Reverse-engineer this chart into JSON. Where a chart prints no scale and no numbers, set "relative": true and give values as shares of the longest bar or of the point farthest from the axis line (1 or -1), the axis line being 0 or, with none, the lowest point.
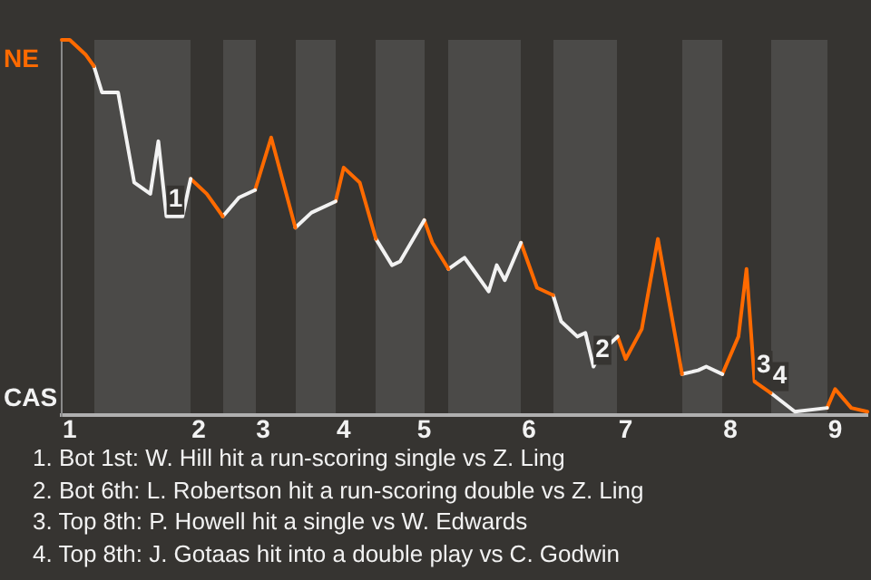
{
  "chart_data": {
    "type": "line",
    "relative": true,
    "categories": [
      null,
      "1",
      null,
      null,
      null,
      null,
      null,
      null,
      null,
      null,
      null,
      null,
      null,
      null,
      null,
      null,
      null,
      "2",
      null,
      null,
      null,
      null,
      null,
      null,
      null,
      "3",
      null,
      null,
      null,
      null,
      null,
      null,
      null,
      null,
      null,
      "4",
      null,
      null,
      null,
      null,
      null,
      null,
      null,
      null,
      null,
      "5",
      null,
      null,
      null,
      null,
      null,
      null,
      null,
      null,
      null,
      null,
      null,
      null,
      "6",
      null,
      null,
      null,
      null,
      null,
      null,
      null,
      null,
      null,
      null,
      null,
      "7",
      null,
      null,
      null,
      null,
      null,
      null,
      null,
      null,
      null,
      null,
      null,
      null,
      "8",
      null,
      null,
      null,
      null,
      null,
      null,
      null,
      null,
      null,
      null,
      null,
      null,
      "9",
      null,
      null,
      null,
      null
    ],
    "series": [
      {
        "color": "#ff6a00",
        "values": [
          1,
          1,
          null,
          0.96,
          0.93,
          null,
          null,
          null,
          null,
          null,
          null,
          null,
          null,
          null,
          null,
          null,
          null,
          null,
          null,
          null,
          null,
          null,
          null,
          null,
          null,
          null,
          null,
          null,
          null,
          null,
          null,
          null,
          null,
          null,
          null,
          null,
          null,
          null,
          null,
          null,
          null,
          null,
          null,
          null,
          null,
          null,
          null,
          null,
          null,
          null,
          null,
          null,
          null,
          null,
          null,
          null,
          null,
          null,
          null,
          null,
          null,
          null,
          null,
          null,
          null,
          null,
          null,
          null,
          null,
          null,
          null,
          null,
          null,
          null,
          null,
          null,
          null,
          null,
          null,
          null,
          null,
          null,
          null,
          null,
          null,
          null,
          null,
          null,
          null,
          null,
          null,
          null,
          null,
          null,
          null,
          null,
          null,
          null,
          null,
          null,
          null
        ]
      },
      {
        "color": "#f2f2f2",
        "values": [
          null,
          null,
          null,
          null,
          0.93,
          0.86,
          null,
          0.86,
          null,
          0.62,
          null,
          0.59,
          0.73,
          0.53,
          null,
          0.53,
          0.63,
          null,
          null,
          null,
          null,
          null,
          null,
          null,
          null,
          null,
          null,
          null,
          null,
          null,
          null,
          null,
          null,
          null,
          null,
          null,
          null,
          null,
          null,
          null,
          null,
          null,
          null,
          null,
          null,
          null,
          null,
          null,
          null,
          null,
          null,
          null,
          null,
          null,
          null,
          null,
          null,
          null,
          null,
          null,
          null,
          null,
          null,
          null,
          null,
          null,
          null,
          null,
          null,
          null,
          null,
          null,
          null,
          null,
          null,
          null,
          null,
          null,
          null,
          null,
          null,
          null,
          null,
          null,
          null,
          null,
          null,
          null,
          null,
          null,
          null,
          null,
          null,
          null,
          null,
          null,
          null,
          null,
          null,
          null,
          null
        ]
      },
      {
        "color": "#ff6a00",
        "values": [
          null,
          null,
          null,
          null,
          null,
          null,
          null,
          null,
          null,
          null,
          null,
          null,
          null,
          null,
          null,
          null,
          0.63,
          null,
          0.59,
          null,
          0.53,
          null,
          null,
          null,
          null,
          null,
          null,
          null,
          null,
          null,
          null,
          null,
          null,
          null,
          null,
          null,
          null,
          null,
          null,
          null,
          null,
          null,
          null,
          null,
          null,
          null,
          null,
          null,
          null,
          null,
          null,
          null,
          null,
          null,
          null,
          null,
          null,
          null,
          null,
          null,
          null,
          null,
          null,
          null,
          null,
          null,
          null,
          null,
          null,
          null,
          null,
          null,
          null,
          null,
          null,
          null,
          null,
          null,
          null,
          null,
          null,
          null,
          null,
          null,
          null,
          null,
          null,
          null,
          null,
          null,
          null,
          null,
          null,
          null,
          null,
          null,
          null,
          null,
          null,
          null,
          null
        ]
      },
      {
        "color": "#f2f2f2",
        "values": [
          null,
          null,
          null,
          null,
          null,
          null,
          null,
          null,
          null,
          null,
          null,
          null,
          null,
          null,
          null,
          null,
          null,
          null,
          null,
          null,
          0.53,
          null,
          0.58,
          null,
          0.6,
          null,
          null,
          null,
          null,
          null,
          null,
          null,
          null,
          null,
          null,
          null,
          null,
          null,
          null,
          null,
          null,
          null,
          null,
          null,
          null,
          null,
          null,
          null,
          null,
          null,
          null,
          null,
          null,
          null,
          null,
          null,
          null,
          null,
          null,
          null,
          null,
          null,
          null,
          null,
          null,
          null,
          null,
          null,
          null,
          null,
          null,
          null,
          null,
          null,
          null,
          null,
          null,
          null,
          null,
          null,
          null,
          null,
          null,
          null,
          null,
          null,
          null,
          null,
          null,
          null,
          null,
          null,
          null,
          null,
          null,
          null,
          null,
          null,
          null,
          null,
          null
        ]
      },
      {
        "color": "#ff6a00",
        "values": [
          null,
          null,
          null,
          null,
          null,
          null,
          null,
          null,
          null,
          null,
          null,
          null,
          null,
          null,
          null,
          null,
          null,
          null,
          null,
          null,
          null,
          null,
          null,
          null,
          0.6,
          null,
          0.74,
          null,
          0.58,
          0.5,
          null,
          null,
          null,
          null,
          null,
          null,
          null,
          null,
          null,
          null,
          null,
          null,
          null,
          null,
          null,
          null,
          null,
          null,
          null,
          null,
          null,
          null,
          null,
          null,
          null,
          null,
          null,
          null,
          null,
          null,
          null,
          null,
          null,
          null,
          null,
          null,
          null,
          null,
          null,
          null,
          null,
          null,
          null,
          null,
          null,
          null,
          null,
          null,
          null,
          null,
          null,
          null,
          null,
          null,
          null,
          null,
          null,
          null,
          null,
          null,
          null,
          null,
          null,
          null,
          null,
          null,
          null,
          null,
          null,
          null,
          null
        ]
      },
      {
        "color": "#f2f2f2",
        "values": [
          null,
          null,
          null,
          null,
          null,
          null,
          null,
          null,
          null,
          null,
          null,
          null,
          null,
          null,
          null,
          null,
          null,
          null,
          null,
          null,
          null,
          null,
          null,
          null,
          null,
          null,
          null,
          null,
          null,
          0.5,
          null,
          0.54,
          null,
          null,
          0.57,
          null,
          null,
          null,
          null,
          null,
          null,
          null,
          null,
          null,
          null,
          null,
          null,
          null,
          null,
          null,
          null,
          null,
          null,
          null,
          null,
          null,
          null,
          null,
          null,
          null,
          null,
          null,
          null,
          null,
          null,
          null,
          null,
          null,
          null,
          null,
          null,
          null,
          null,
          null,
          null,
          null,
          null,
          null,
          null,
          null,
          null,
          null,
          null,
          null,
          null,
          null,
          null,
          null,
          null,
          null,
          null,
          null,
          null,
          null,
          null,
          null,
          null,
          null,
          null,
          null,
          null
        ]
      },
      {
        "color": "#ff6a00",
        "values": [
          null,
          null,
          null,
          null,
          null,
          null,
          null,
          null,
          null,
          null,
          null,
          null,
          null,
          null,
          null,
          null,
          null,
          null,
          null,
          null,
          null,
          null,
          null,
          null,
          null,
          null,
          null,
          null,
          null,
          null,
          null,
          null,
          null,
          null,
          0.57,
          0.66,
          null,
          0.62,
          null,
          0.47,
          null,
          null,
          null,
          null,
          null,
          null,
          null,
          null,
          null,
          null,
          null,
          null,
          null,
          null,
          null,
          null,
          null,
          null,
          null,
          null,
          null,
          null,
          null,
          null,
          null,
          null,
          null,
          null,
          null,
          null,
          null,
          null,
          null,
          null,
          null,
          null,
          null,
          null,
          null,
          null,
          null,
          null,
          null,
          null,
          null,
          null,
          null,
          null,
          null,
          null,
          null,
          null,
          null,
          null,
          null,
          null,
          null,
          null,
          null,
          null,
          null
        ]
      },
      {
        "color": "#f2f2f2",
        "values": [
          null,
          null,
          null,
          null,
          null,
          null,
          null,
          null,
          null,
          null,
          null,
          null,
          null,
          null,
          null,
          null,
          null,
          null,
          null,
          null,
          null,
          null,
          null,
          null,
          null,
          null,
          null,
          null,
          null,
          null,
          null,
          null,
          null,
          null,
          null,
          null,
          null,
          null,
          null,
          0.47,
          null,
          0.4,
          0.41,
          null,
          null,
          0.52,
          null,
          null,
          null,
          null,
          null,
          null,
          null,
          null,
          null,
          null,
          null,
          null,
          null,
          null,
          null,
          null,
          null,
          null,
          null,
          null,
          null,
          null,
          null,
          null,
          null,
          null,
          null,
          null,
          null,
          null,
          null,
          null,
          null,
          null,
          null,
          null,
          null,
          null,
          null,
          null,
          null,
          null,
          null,
          null,
          null,
          null,
          null,
          null,
          null,
          null,
          null,
          null,
          null,
          null,
          null
        ]
      },
      {
        "color": "#ff6a00",
        "values": [
          null,
          null,
          null,
          null,
          null,
          null,
          null,
          null,
          null,
          null,
          null,
          null,
          null,
          null,
          null,
          null,
          null,
          null,
          null,
          null,
          null,
          null,
          null,
          null,
          null,
          null,
          null,
          null,
          null,
          null,
          null,
          null,
          null,
          null,
          null,
          null,
          null,
          null,
          null,
          null,
          null,
          null,
          null,
          null,
          null,
          0.52,
          0.46,
          null,
          0.39,
          null,
          null,
          null,
          null,
          null,
          null,
          null,
          null,
          null,
          null,
          null,
          null,
          null,
          null,
          null,
          null,
          null,
          null,
          null,
          null,
          null,
          null,
          null,
          null,
          null,
          null,
          null,
          null,
          null,
          null,
          null,
          null,
          null,
          null,
          null,
          null,
          null,
          null,
          null,
          null,
          null,
          null,
          null,
          null,
          null,
          null,
          null,
          null,
          null,
          null,
          null,
          null
        ]
      },
      {
        "color": "#f2f2f2",
        "values": [
          null,
          null,
          null,
          null,
          null,
          null,
          null,
          null,
          null,
          null,
          null,
          null,
          null,
          null,
          null,
          null,
          null,
          null,
          null,
          null,
          null,
          null,
          null,
          null,
          null,
          null,
          null,
          null,
          null,
          null,
          null,
          null,
          null,
          null,
          null,
          null,
          null,
          null,
          null,
          null,
          null,
          null,
          null,
          null,
          null,
          null,
          null,
          null,
          0.39,
          null,
          0.42,
          0.39,
          null,
          0.33,
          0.4,
          0.36,
          null,
          0.46,
          null,
          null,
          null,
          null,
          null,
          null,
          null,
          null,
          null,
          null,
          null,
          null,
          null,
          null,
          null,
          null,
          null,
          null,
          null,
          null,
          null,
          null,
          null,
          null,
          null,
          null,
          null,
          null,
          null,
          null,
          null,
          null,
          null,
          null,
          null,
          null,
          null,
          null,
          null,
          null,
          null,
          null,
          null
        ]
      },
      {
        "color": "#ff6a00",
        "values": [
          null,
          null,
          null,
          null,
          null,
          null,
          null,
          null,
          null,
          null,
          null,
          null,
          null,
          null,
          null,
          null,
          null,
          null,
          null,
          null,
          null,
          null,
          null,
          null,
          null,
          null,
          null,
          null,
          null,
          null,
          null,
          null,
          null,
          null,
          null,
          null,
          null,
          null,
          null,
          null,
          null,
          null,
          null,
          null,
          null,
          null,
          null,
          null,
          null,
          null,
          null,
          null,
          null,
          null,
          null,
          null,
          null,
          0.46,
          null,
          0.34,
          null,
          0.32,
          null,
          null,
          null,
          null,
          null,
          null,
          null,
          null,
          null,
          null,
          null,
          null,
          null,
          null,
          null,
          null,
          null,
          null,
          null,
          null,
          null,
          null,
          null,
          null,
          null,
          null,
          null,
          null,
          null,
          null,
          null,
          null,
          null,
          null,
          null,
          null,
          null,
          null,
          null
        ]
      },
      {
        "color": "#f2f2f2",
        "values": [
          null,
          null,
          null,
          null,
          null,
          null,
          null,
          null,
          null,
          null,
          null,
          null,
          null,
          null,
          null,
          null,
          null,
          null,
          null,
          null,
          null,
          null,
          null,
          null,
          null,
          null,
          null,
          null,
          null,
          null,
          null,
          null,
          null,
          null,
          null,
          null,
          null,
          null,
          null,
          null,
          null,
          null,
          null,
          null,
          null,
          null,
          null,
          null,
          null,
          null,
          null,
          null,
          null,
          null,
          null,
          null,
          null,
          null,
          null,
          null,
          null,
          0.32,
          0.25,
          null,
          0.21,
          0.22,
          0.13,
          0.17,
          null,
          0.21,
          null,
          null,
          null,
          null,
          null,
          null,
          null,
          null,
          null,
          null,
          null,
          null,
          null,
          null,
          null,
          null,
          null,
          null,
          null,
          null,
          null,
          null,
          null,
          null,
          null,
          null,
          null,
          null,
          null,
          null,
          null
        ]
      },
      {
        "color": "#ff6a00",
        "values": [
          null,
          null,
          null,
          null,
          null,
          null,
          null,
          null,
          null,
          null,
          null,
          null,
          null,
          null,
          null,
          null,
          null,
          null,
          null,
          null,
          null,
          null,
          null,
          null,
          null,
          null,
          null,
          null,
          null,
          null,
          null,
          null,
          null,
          null,
          null,
          null,
          null,
          null,
          null,
          null,
          null,
          null,
          null,
          null,
          null,
          null,
          null,
          null,
          null,
          null,
          null,
          null,
          null,
          null,
          null,
          null,
          null,
          null,
          null,
          null,
          null,
          null,
          null,
          null,
          null,
          null,
          null,
          null,
          null,
          0.21,
          0.15,
          null,
          0.23,
          null,
          0.47,
          null,
          null,
          0.11,
          null,
          null,
          null,
          null,
          null,
          null,
          null,
          null,
          null,
          null,
          null,
          null,
          null,
          null,
          null,
          null,
          null,
          null,
          null,
          null,
          null,
          null,
          null
        ]
      },
      {
        "color": "#f2f2f2",
        "values": [
          null,
          null,
          null,
          null,
          null,
          null,
          null,
          null,
          null,
          null,
          null,
          null,
          null,
          null,
          null,
          null,
          null,
          null,
          null,
          null,
          null,
          null,
          null,
          null,
          null,
          null,
          null,
          null,
          null,
          null,
          null,
          null,
          null,
          null,
          null,
          null,
          null,
          null,
          null,
          null,
          null,
          null,
          null,
          null,
          null,
          null,
          null,
          null,
          null,
          null,
          null,
          null,
          null,
          null,
          null,
          null,
          null,
          null,
          null,
          null,
          null,
          null,
          null,
          null,
          null,
          null,
          null,
          null,
          null,
          null,
          null,
          null,
          null,
          null,
          null,
          null,
          null,
          0.11,
          null,
          0.12,
          0.13,
          null,
          0.11,
          null,
          null,
          null,
          null,
          null,
          null,
          null,
          null,
          null,
          null,
          null,
          null,
          null,
          null,
          null,
          null,
          null,
          null
        ]
      },
      {
        "color": "#ff6a00",
        "values": [
          null,
          null,
          null,
          null,
          null,
          null,
          null,
          null,
          null,
          null,
          null,
          null,
          null,
          null,
          null,
          null,
          null,
          null,
          null,
          null,
          null,
          null,
          null,
          null,
          null,
          null,
          null,
          null,
          null,
          null,
          null,
          null,
          null,
          null,
          null,
          null,
          null,
          null,
          null,
          null,
          null,
          null,
          null,
          null,
          null,
          null,
          null,
          null,
          null,
          null,
          null,
          null,
          null,
          null,
          null,
          null,
          null,
          null,
          null,
          null,
          null,
          null,
          null,
          null,
          null,
          null,
          null,
          null,
          null,
          null,
          null,
          null,
          null,
          null,
          null,
          null,
          null,
          null,
          null,
          null,
          null,
          null,
          0.11,
          null,
          0.21,
          0.39,
          0.09,
          null,
          0.06,
          null,
          null,
          null,
          null,
          null,
          null,
          null,
          null,
          null,
          null,
          null,
          null
        ]
      },
      {
        "color": "#f2f2f2",
        "values": [
          null,
          null,
          null,
          null,
          null,
          null,
          null,
          null,
          null,
          null,
          null,
          null,
          null,
          null,
          null,
          null,
          null,
          null,
          null,
          null,
          null,
          null,
          null,
          null,
          null,
          null,
          null,
          null,
          null,
          null,
          null,
          null,
          null,
          null,
          null,
          null,
          null,
          null,
          null,
          null,
          null,
          null,
          null,
          null,
          null,
          null,
          null,
          null,
          null,
          null,
          null,
          null,
          null,
          null,
          null,
          null,
          null,
          null,
          null,
          null,
          null,
          null,
          null,
          null,
          null,
          null,
          null,
          null,
          null,
          null,
          null,
          null,
          null,
          null,
          null,
          null,
          null,
          null,
          null,
          null,
          null,
          null,
          null,
          null,
          null,
          null,
          null,
          null,
          0.06,
          null,
          null,
          0.01,
          null,
          null,
          null,
          0.02,
          null,
          null,
          null,
          null,
          null
        ]
      },
      {
        "color": "#ff6a00",
        "values": [
          null,
          null,
          null,
          null,
          null,
          null,
          null,
          null,
          null,
          null,
          null,
          null,
          null,
          null,
          null,
          null,
          null,
          null,
          null,
          null,
          null,
          null,
          null,
          null,
          null,
          null,
          null,
          null,
          null,
          null,
          null,
          null,
          null,
          null,
          null,
          null,
          null,
          null,
          null,
          null,
          null,
          null,
          null,
          null,
          null,
          null,
          null,
          null,
          null,
          null,
          null,
          null,
          null,
          null,
          null,
          null,
          null,
          null,
          null,
          null,
          null,
          null,
          null,
          null,
          null,
          null,
          null,
          null,
          null,
          null,
          null,
          null,
          null,
          null,
          null,
          null,
          null,
          null,
          null,
          null,
          null,
          null,
          null,
          null,
          null,
          null,
          null,
          null,
          null,
          null,
          null,
          null,
          null,
          null,
          null,
          0.02,
          0.07,
          null,
          0.02,
          null,
          0.01
        ]
      }
    ],
    "legend": false,
    "marker": "none",
    "line_style": "solid",
    "annotations": [
      "NE",
      "CAS",
      {
        "text": "1",
        "y": 0.53
      },
      {
        "text": "2",
        "y": 0.13
      },
      {
        "text": "3",
        "y": 0.09
      },
      {
        "text": "4",
        "y": 0.06
      },
      "1. Bot 1st: W. Hill hit a run-scoring single vs Z. Ling",
      "2. Bot 6th: L. Robertson hit a run-scoring double vs Z. Ling",
      "3. Top 8th: P. Howell hit a single vs W. Edwards",
      "4. Top 8th: J. Gotaas hit into a double play vs C. Godwin"
    ]
  }
}
